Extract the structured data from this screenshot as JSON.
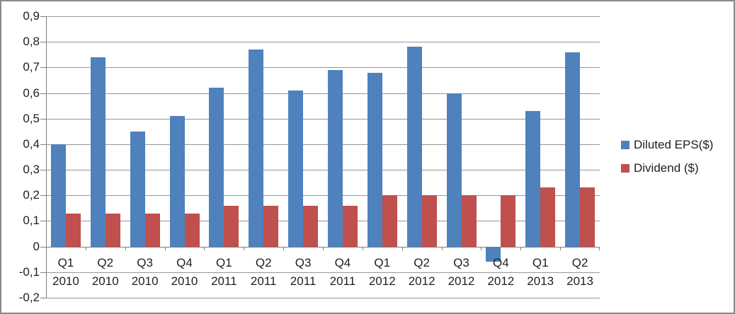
{
  "chart_data": {
    "type": "bar",
    "title": "",
    "xlabel": "",
    "ylabel": "",
    "decimal_separator": ",",
    "grid": true,
    "legend_position": "right",
    "categories": [
      {
        "line1": "Q1",
        "line2": "2010"
      },
      {
        "line1": "Q2",
        "line2": "2010"
      },
      {
        "line1": "Q3",
        "line2": "2010"
      },
      {
        "line1": "Q4",
        "line2": "2010"
      },
      {
        "line1": "Q1",
        "line2": "2011"
      },
      {
        "line1": "Q2",
        "line2": "2011"
      },
      {
        "line1": "Q3",
        "line2": "2011"
      },
      {
        "line1": "Q4",
        "line2": "2011"
      },
      {
        "line1": "Q1",
        "line2": "2012"
      },
      {
        "line1": "Q2",
        "line2": "2012"
      },
      {
        "line1": "Q3",
        "line2": "2012"
      },
      {
        "line1": "Q4",
        "line2": "2012"
      },
      {
        "line1": "Q1",
        "line2": "2013"
      },
      {
        "line1": "Q2",
        "line2": "2013"
      }
    ],
    "series": [
      {
        "name": "Diluted EPS($)",
        "color": "#4F81BD",
        "values": [
          0.4,
          0.74,
          0.45,
          0.51,
          0.62,
          0.77,
          0.61,
          0.69,
          0.68,
          0.78,
          0.6,
          -0.06,
          0.53,
          0.76
        ]
      },
      {
        "name": "Dividend ($)",
        "color": "#C0504D",
        "values": [
          0.13,
          0.13,
          0.13,
          0.13,
          0.16,
          0.16,
          0.16,
          0.16,
          0.2,
          0.2,
          0.2,
          0.2,
          0.23,
          0.23
        ]
      }
    ],
    "y_axis": {
      "min": -0.2,
      "max": 0.9,
      "step": 0.1,
      "tick_labels": [
        "0,9",
        "0,8",
        "0,7",
        "0,6",
        "0,5",
        "0,4",
        "0,3",
        "0,2",
        "0,1",
        "0",
        "-0,1",
        "-0,2"
      ]
    },
    "colors": {
      "gridline": "#969696",
      "axis": "#7f7f7f",
      "text": "#1f1f1f",
      "frame_border": "#8a8a8a",
      "background": "#ffffff"
    }
  }
}
